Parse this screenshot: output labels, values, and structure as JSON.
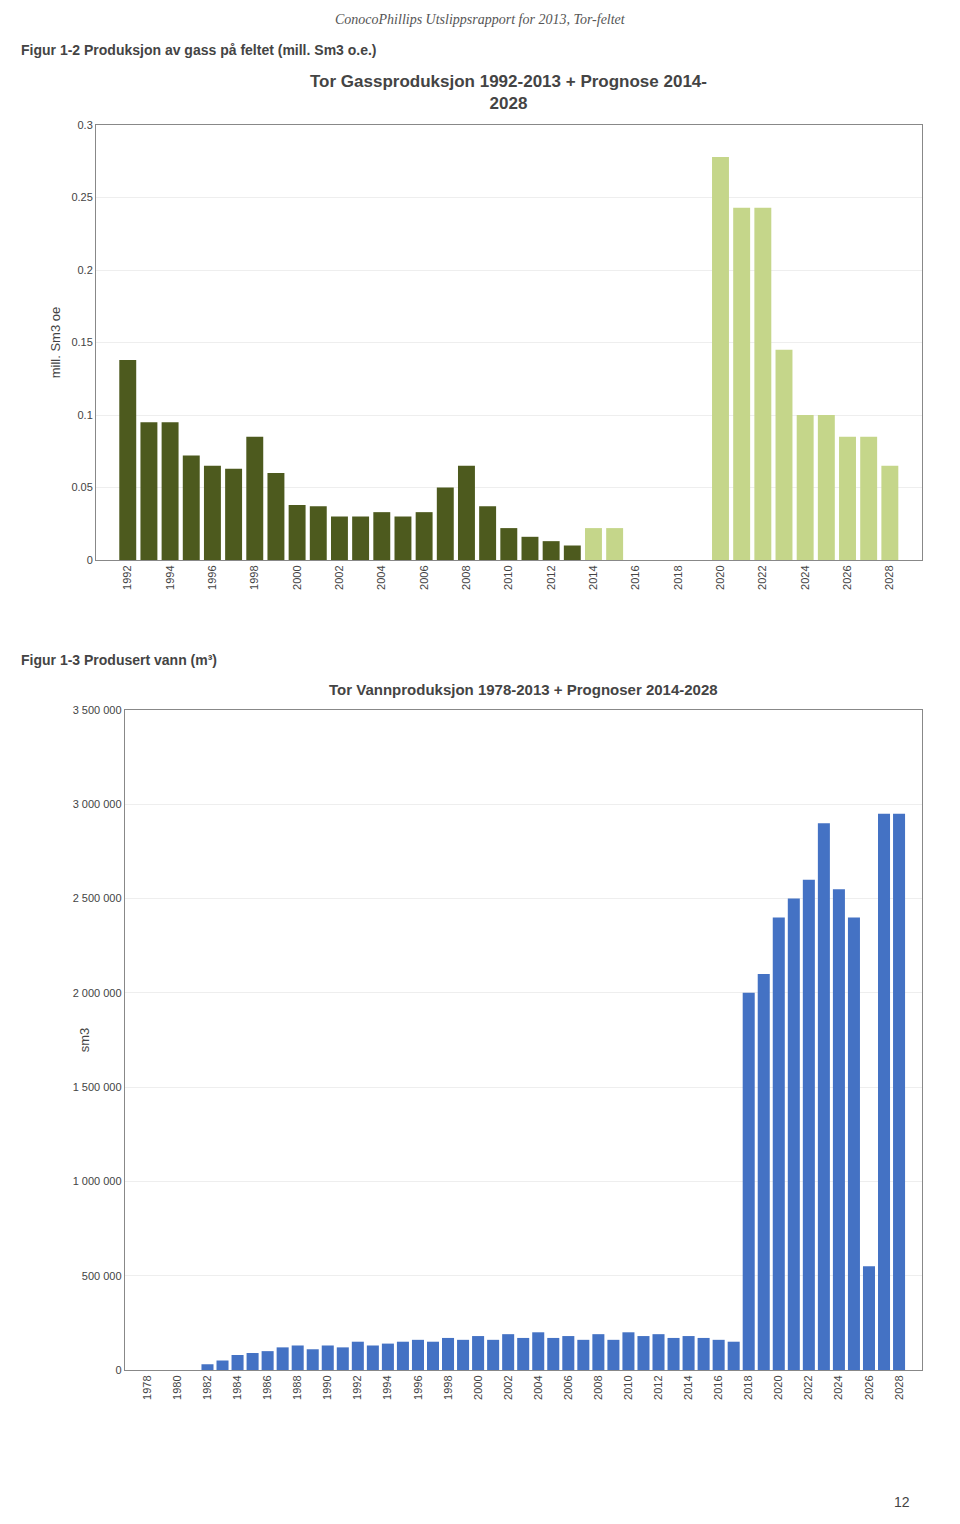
{
  "page_title": "ConocoPhillips Utslippsrapport for 2013, Tor-feltet",
  "page_number": "12",
  "chart_data": [
    {
      "type": "bar",
      "title": "Tor Gassproduksjon 1992-2013 + Prognose 2014-\n2028",
      "subtitle": "Figur 1-2 Produksjon av gass på feltet (mill. Sm3 o.e.)",
      "ylabel": "mill. Sm3 oe",
      "x": [
        1992,
        1993,
        1994,
        1995,
        1996,
        1997,
        1998,
        1999,
        2000,
        2001,
        2002,
        2003,
        2004,
        2005,
        2006,
        2007,
        2008,
        2009,
        2010,
        2011,
        2012,
        2013,
        2014,
        2015,
        2016,
        2017,
        2018,
        2019,
        2020,
        2021,
        2022,
        2023,
        2024,
        2025,
        2026,
        2027,
        2028
      ],
      "values": [
        0.138,
        0.095,
        0.095,
        0.072,
        0.065,
        0.063,
        0.085,
        0.06,
        0.038,
        0.037,
        0.03,
        0.03,
        0.033,
        0.03,
        0.033,
        0.05,
        0.065,
        0.037,
        0.022,
        0.016,
        0.013,
        0.01,
        0.022,
        0.022,
        0.0,
        0.0,
        0.0,
        0.0,
        0.278,
        0.243,
        0.243,
        0.145,
        0.1,
        0.1,
        0.085,
        0.085,
        0.065
      ],
      "colors": [
        "#4d5a1e",
        "#4d5a1e",
        "#4d5a1e",
        "#4d5a1e",
        "#4d5a1e",
        "#4d5a1e",
        "#4d5a1e",
        "#4d5a1e",
        "#4d5a1e",
        "#4d5a1e",
        "#4d5a1e",
        "#4d5a1e",
        "#4d5a1e",
        "#4d5a1e",
        "#4d5a1e",
        "#4d5a1e",
        "#4d5a1e",
        "#4d5a1e",
        "#4d5a1e",
        "#4d5a1e",
        "#4d5a1e",
        "#4d5a1e",
        "#c5d68a",
        "#c5d68a",
        "#c5d68a",
        "#c5d68a",
        "#c5d68a",
        "#c5d68a",
        "#c5d68a",
        "#c5d68a",
        "#c5d68a",
        "#c5d68a",
        "#c5d68a",
        "#c5d68a",
        "#c5d68a",
        "#c5d68a",
        "#c5d68a"
      ],
      "xlim": [
        1990.5,
        2029.5
      ],
      "xticks": [
        1992,
        1994,
        1996,
        1998,
        2000,
        2002,
        2004,
        2006,
        2008,
        2010,
        2012,
        2014,
        2016,
        2018,
        2020,
        2022,
        2024,
        2026,
        2028
      ],
      "ylim": [
        0,
        0.3
      ],
      "yticks": [
        0,
        0.05,
        0.1,
        0.15,
        0.2,
        0.25,
        0.3
      ],
      "grid": true
    },
    {
      "type": "bar",
      "title": "Tor Vannproduksjon 1978-2013 + Prognoser 2014-2028",
      "subtitle": "Figur 1-3 Produsert vann (m³)",
      "ylabel": "sm3",
      "x": [
        1978,
        1979,
        1980,
        1981,
        1982,
        1983,
        1984,
        1985,
        1986,
        1987,
        1988,
        1989,
        1990,
        1991,
        1992,
        1993,
        1994,
        1995,
        1996,
        1997,
        1998,
        1999,
        2000,
        2001,
        2002,
        2003,
        2004,
        2005,
        2006,
        2007,
        2008,
        2009,
        2010,
        2011,
        2012,
        2013,
        2014,
        2015,
        2016,
        2017,
        2018,
        2019,
        2020,
        2021,
        2022,
        2023,
        2024,
        2025,
        2026,
        2027,
        2028
      ],
      "values": [
        0,
        0,
        0,
        0,
        30000,
        50000,
        80000,
        90000,
        100000,
        120000,
        130000,
        110000,
        130000,
        120000,
        150000,
        130000,
        140000,
        150000,
        160000,
        150000,
        170000,
        160000,
        180000,
        160000,
        190000,
        170000,
        200000,
        170000,
        180000,
        160000,
        190000,
        160000,
        200000,
        180000,
        190000,
        170000,
        180000,
        170000,
        160000,
        150000,
        2000000,
        2100000,
        2400000,
        2500000,
        2600000,
        2900000,
        2550000,
        2400000,
        550000,
        2950000,
        2950000
      ],
      "color": "#4472c4",
      "xlim": [
        1976.5,
        2029.5
      ],
      "xticks": [
        1978,
        1980,
        1982,
        1984,
        1986,
        1988,
        1990,
        1992,
        1994,
        1996,
        1998,
        2000,
        2002,
        2004,
        2006,
        2008,
        2010,
        2012,
        2014,
        2016,
        2018,
        2020,
        2022,
        2024,
        2026,
        2028
      ],
      "ylim": [
        0,
        3500000
      ],
      "yticks": [
        0,
        {
          "value": 500000,
          "label": "500 000"
        },
        {
          "value": 1000000,
          "label": "1 000 000"
        },
        {
          "value": 1500000,
          "label": "1 500 000"
        },
        {
          "value": 2000000,
          "label": "2 000 000"
        },
        {
          "value": 2500000,
          "label": "2 500 000"
        },
        {
          "value": 3000000,
          "label": "3 000 000"
        },
        {
          "value": 3500000,
          "label": "3 500 000"
        }
      ],
      "grid": true
    }
  ]
}
